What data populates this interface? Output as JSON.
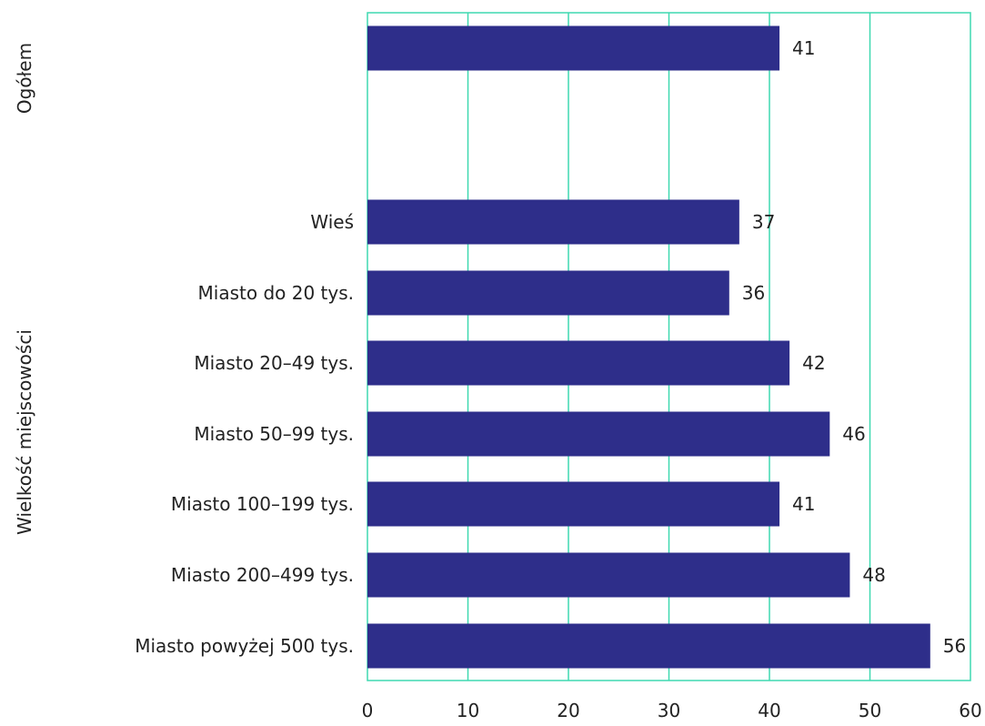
{
  "chart_data": {
    "type": "bar",
    "orientation": "horizontal",
    "groups": [
      {
        "label": "Ogółem",
        "categories": [
          ""
        ],
        "values": [
          41
        ]
      },
      {
        "label": "Wielkość miejscowości",
        "categories": [
          "Wieś",
          "Miasto do 20 tys.",
          "Miasto 20–49 tys.",
          "Miasto 50–99 tys.",
          "Miasto 100–199 tys.",
          "Miasto 200–499 tys.",
          "Miasto powyżej 500 tys."
        ],
        "values": [
          37,
          36,
          42,
          46,
          41,
          48,
          56
        ]
      }
    ],
    "xlim": [
      0,
      60
    ],
    "xticks": [
      0,
      10,
      20,
      30,
      40,
      50,
      60
    ],
    "grid": true,
    "colors": {
      "bar": "#2e2e8a",
      "grid": "#3fd9b0"
    }
  }
}
